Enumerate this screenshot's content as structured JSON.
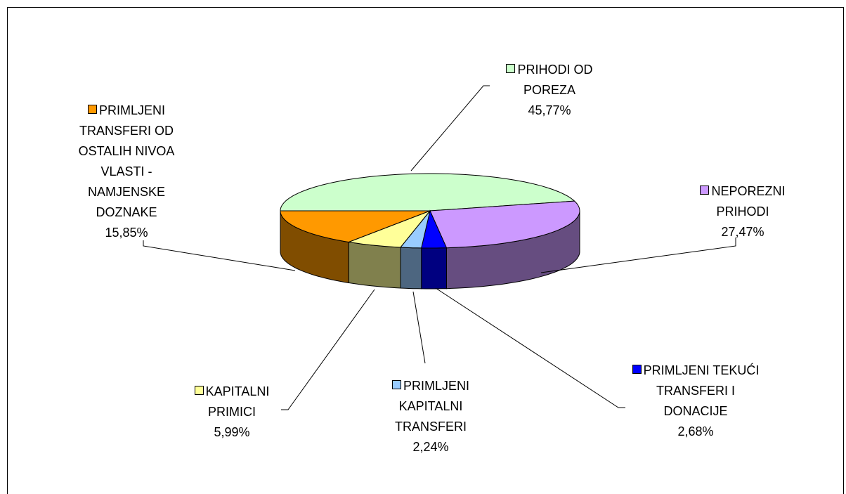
{
  "chart_data": {
    "type": "pie",
    "three_d": true,
    "categories": [
      "PRIHODI OD POREZA",
      "NEPOREZNI PRIHODI",
      "PRIMLJENI TEKUĆI TRANSFERI I DONACIJE",
      "PRIMLJENI KAPITALNI TRANSFERI",
      "KAPITALNI PRIMICI",
      "PRIMLJENI TRANSFERI OD OSTALIH NIVOA VLASTI - NAMJENSKE DOZNAKE"
    ],
    "values": [
      45.77,
      27.47,
      2.68,
      2.24,
      5.99,
      15.85
    ],
    "value_labels": [
      "45,77%",
      "27,47%",
      "2,68%",
      "2,24%",
      "5,99%",
      "15,85%"
    ],
    "colors": [
      "#ccffcc",
      "#cc99ff",
      "#0000ff",
      "#99ccff",
      "#ffff99",
      "#ff9900"
    ]
  }
}
